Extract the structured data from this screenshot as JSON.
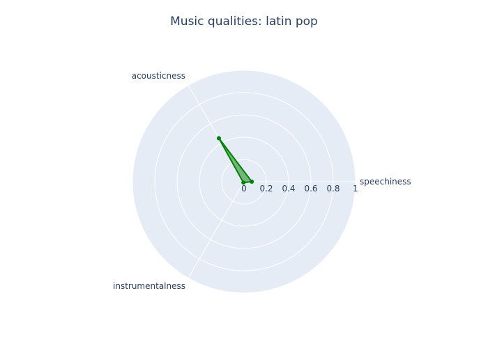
{
  "chart_data": {
    "type": "radar",
    "title": "Music qualities: latin pop",
    "axes": [
      "speechiness",
      "acousticness",
      "instrumentalness"
    ],
    "radial_range": [
      0,
      1
    ],
    "radial_ticks": [
      "0",
      "0.2",
      "0.4",
      "0.6",
      "0.8",
      "1"
    ],
    "series": [
      {
        "values": [
          0.07,
          0.45,
          0.01
        ],
        "color": "#008000",
        "fill": true
      }
    ],
    "grid": true,
    "legend": false
  },
  "colors": {
    "polar_background": "#e5ecf6",
    "grid": "#ffffff",
    "text": "#2a3f5f"
  }
}
